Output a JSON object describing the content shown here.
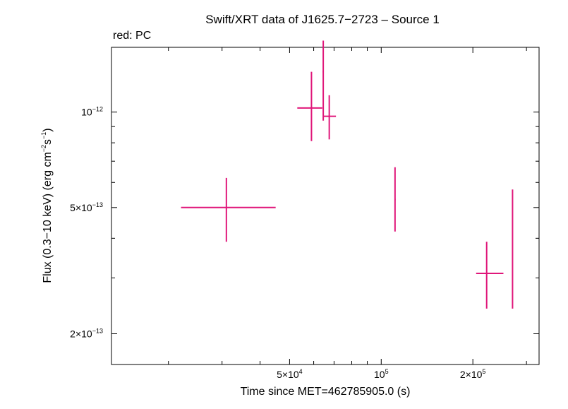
{
  "chart_data": {
    "type": "scatter",
    "title": "Swift/XRT data of J1625.7−2723 – Source 1",
    "subtitle": "red: PC",
    "xlabel": "Time since MET=462785905.0 (s)",
    "ylabel": {
      "main": "Flux (0.3−10 keV) (erg cm",
      "exp1": "−2",
      "mid": "s",
      "exp2": "−1",
      "end": ")"
    },
    "x_scale": "log",
    "y_scale": "log",
    "xlim": [
      13000,
      330000
    ],
    "ylim": [
      1.6e-13,
      1.6e-12
    ],
    "x_ticks": [
      {
        "value": 50000,
        "mantissa": "5×10",
        "exp": "4"
      },
      {
        "value": 100000,
        "mantissa": "10",
        "exp": "5"
      },
      {
        "value": 200000,
        "mantissa": "2×10",
        "exp": "5"
      }
    ],
    "y_ticks": [
      {
        "value": 1e-12,
        "mantissa": "10",
        "exp": "−12"
      },
      {
        "value": 5e-13,
        "mantissa": "5×10",
        "exp": "−13"
      },
      {
        "value": 2e-13,
        "mantissa": "2×10",
        "exp": "−13"
      }
    ],
    "series": [
      {
        "color": "#e0177a",
        "points": [
          {
            "x": 31000,
            "xlo": 22000,
            "xhi": 45000,
            "y": 5e-13,
            "ylo": 3.9e-13,
            "yhi": 6.2e-13
          },
          {
            "x": 59000,
            "xlo": 53000,
            "xhi": 64000,
            "y": 1.03e-12,
            "ylo": 8.1e-13,
            "yhi": 1.34e-12
          },
          {
            "x": 64500,
            "xlo": 64200,
            "xhi": 64800,
            "y": 1.34e-12,
            "ylo": 9.4e-13,
            "yhi": 1.68e-12
          },
          {
            "x": 67500,
            "xlo": 64500,
            "xhi": 71000,
            "y": 9.7e-13,
            "ylo": 8.2e-13,
            "yhi": 1.13e-12
          },
          {
            "x": 111000,
            "xlo": 110500,
            "xhi": 111500,
            "y": 5.3e-13,
            "ylo": 4.2e-13,
            "yhi": 6.7e-13
          },
          {
            "x": 222000,
            "xlo": 205000,
            "xhi": 252000,
            "y": 3.1e-13,
            "ylo": 2.4e-13,
            "yhi": 3.9e-13
          },
          {
            "x": 270000,
            "xlo": 269500,
            "xhi": 270500,
            "y": 3.7e-13,
            "ylo": 2.4e-13,
            "yhi": 5.7e-13
          }
        ]
      }
    ]
  }
}
